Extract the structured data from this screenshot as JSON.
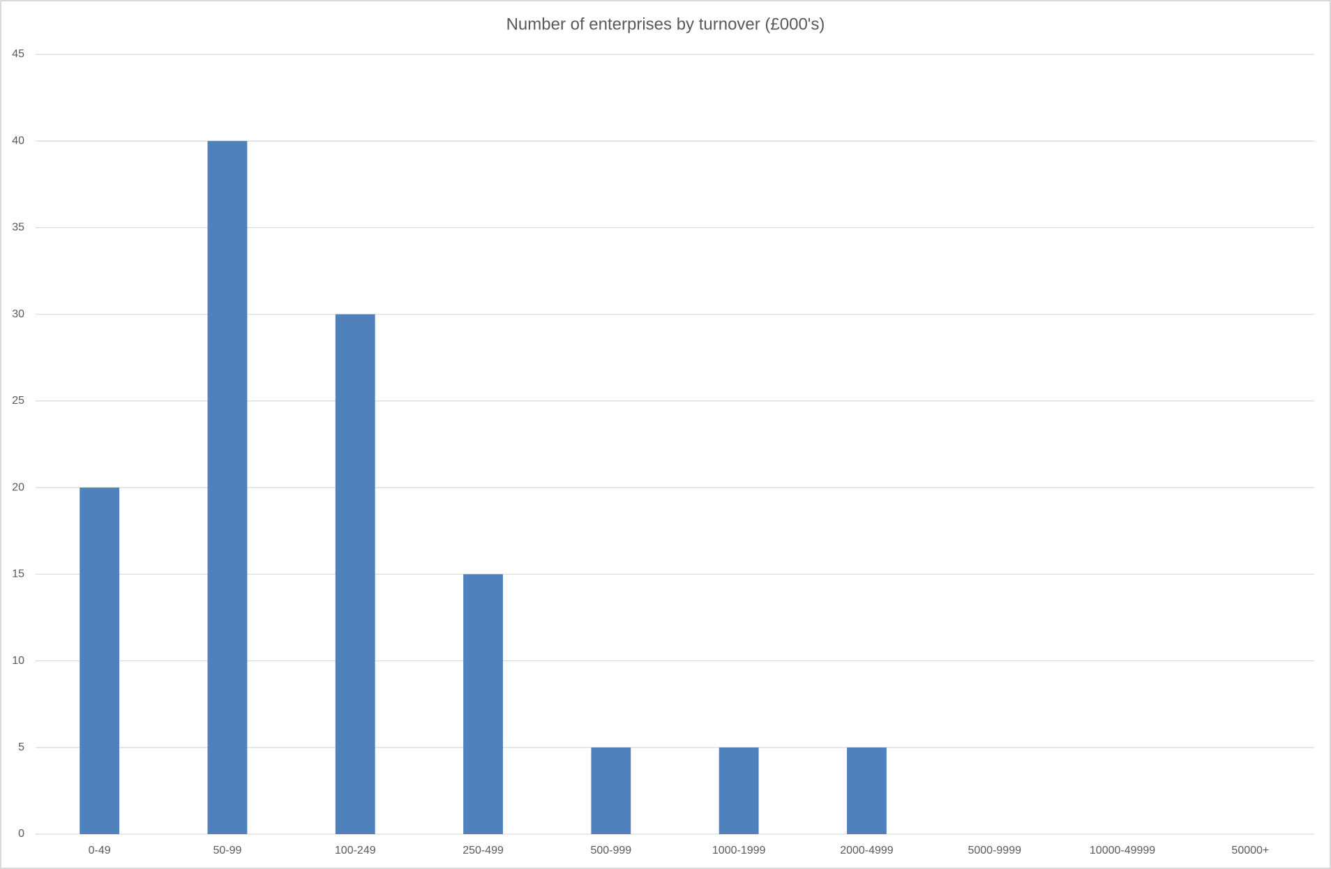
{
  "chart_data": {
    "type": "bar",
    "title": "Number of enterprises by turnover (£000's)",
    "categories": [
      "0-49",
      "50-99",
      "100-249",
      "250-499",
      "500-999",
      "1000-1999",
      "2000-4999",
      "5000-9999",
      "10000-49999",
      "50000+"
    ],
    "values": [
      20,
      40,
      30,
      15,
      5,
      5,
      5,
      0,
      0,
      0
    ],
    "color": "#4f81bd",
    "ylim": [
      0,
      45
    ],
    "yticks": [
      0,
      5,
      10,
      15,
      20,
      25,
      30,
      35,
      40,
      45
    ],
    "grid": true
  }
}
